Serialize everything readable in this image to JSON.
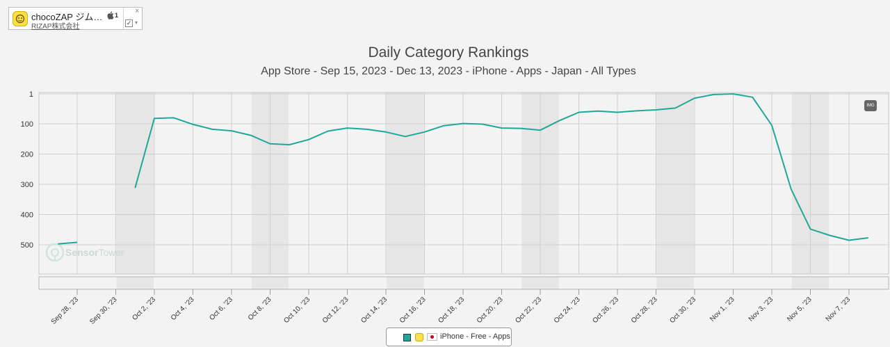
{
  "app_card": {
    "name": "chocoZAP ジム…",
    "developer": "RIZAP株式会社",
    "rank_badge": "1",
    "icon": "app-logo-icon",
    "platform_icon": "apple-icon",
    "close_icon": "close-icon",
    "check_mark": "✓",
    "caret": "▾"
  },
  "chart_title": "Daily Category Rankings",
  "chart_subtitle": "App Store - Sep 15, 2023 - Dec 13, 2023 - iPhone - Apps - Japan - All Types",
  "watermark": {
    "text_a": "Sensor",
    "text_b": "Tower"
  },
  "img_button": "IMG",
  "legend": {
    "label": "iPhone - Free - Apps",
    "color": "#1fa89a"
  },
  "colors": {
    "line": "#1fa89a",
    "weekend_band": "#e6e6e6",
    "plot_bg": "#f3f3f3",
    "grid": "#cfcfcf"
  },
  "chart_data": {
    "type": "line",
    "title": "Daily Category Rankings",
    "subtitle": "App Store - Sep 15, 2023 - Dec 13, 2023 - iPhone - Apps - Japan - All Types",
    "y_reversed": true,
    "ylim": [
      1,
      600
    ],
    "y_ticks": [
      "1",
      "100",
      "200",
      "300",
      "400",
      "500"
    ],
    "x_ticks": [
      "Sep 28, '23",
      "Sep 30, '23",
      "Oct 2, '23",
      "Oct 4, '23",
      "Oct 6, '23",
      "Oct 8, '23",
      "Oct 10, '23",
      "Oct 12, '23",
      "Oct 14, '23",
      "Oct 16, '23",
      "Oct 18, '23",
      "Oct 20, '23",
      "Oct 22, '23",
      "Oct 24, '23",
      "Oct 26, '23",
      "Oct 28, '23",
      "Oct 30, '23",
      "Nov 1, '23",
      "Nov 3, '23",
      "Nov 5, '23",
      "Nov 7, '23"
    ],
    "weekend_bands": [
      [
        "Sep 30, '23",
        "Oct 1, '23"
      ],
      [
        "Oct 7, '23",
        "Oct 8, '23"
      ],
      [
        "Oct 14, '23",
        "Oct 15, '23"
      ],
      [
        "Oct 21, '23",
        "Oct 22, '23"
      ],
      [
        "Oct 28, '23",
        "Oct 29, '23"
      ],
      [
        "Nov 4, '23",
        "Nov 5, '23"
      ]
    ],
    "grid": true,
    "legend_position": "bottom-center",
    "series": [
      {
        "name": "iPhone - Free - Apps",
        "segments": [
          [
            {
              "x": "Sep 27, '23",
              "y": 497
            },
            {
              "x": "Sep 28, '23",
              "y": 492
            }
          ],
          [
            {
              "x": "Oct 1, '23",
              "y": 312
            },
            {
              "x": "Oct 2, '23",
              "y": 82
            },
            {
              "x": "Oct 3, '23",
              "y": 80
            },
            {
              "x": "Oct 4, '23",
              "y": 102
            },
            {
              "x": "Oct 5, '23",
              "y": 118
            },
            {
              "x": "Oct 6, '23",
              "y": 123
            },
            {
              "x": "Oct 7, '23",
              "y": 138
            },
            {
              "x": "Oct 8, '23",
              "y": 166
            },
            {
              "x": "Oct 9, '23",
              "y": 169
            },
            {
              "x": "Oct 10, '23",
              "y": 152
            },
            {
              "x": "Oct 11, '23",
              "y": 124
            },
            {
              "x": "Oct 12, '23",
              "y": 114
            },
            {
              "x": "Oct 13, '23",
              "y": 118
            },
            {
              "x": "Oct 14, '23",
              "y": 127
            },
            {
              "x": "Oct 15, '23",
              "y": 142
            },
            {
              "x": "Oct 16, '23",
              "y": 127
            },
            {
              "x": "Oct 17, '23",
              "y": 106
            },
            {
              "x": "Oct 18, '23",
              "y": 99
            },
            {
              "x": "Oct 19, '23",
              "y": 101
            },
            {
              "x": "Oct 20, '23",
              "y": 114
            },
            {
              "x": "Oct 21, '23",
              "y": 115
            },
            {
              "x": "Oct 22, '23",
              "y": 121
            },
            {
              "x": "Oct 23, '23",
              "y": 89
            },
            {
              "x": "Oct 24, '23",
              "y": 62
            },
            {
              "x": "Oct 25, '23",
              "y": 58
            },
            {
              "x": "Oct 26, '23",
              "y": 62
            },
            {
              "x": "Oct 27, '23",
              "y": 57
            },
            {
              "x": "Oct 28, '23",
              "y": 54
            },
            {
              "x": "Oct 29, '23",
              "y": 48
            },
            {
              "x": "Oct 30, '23",
              "y": 15
            },
            {
              "x": "Oct 31, '23",
              "y": 3
            },
            {
              "x": "Nov 1, '23",
              "y": 1
            },
            {
              "x": "Nov 2, '23",
              "y": 12
            },
            {
              "x": "Nov 3, '23",
              "y": 105
            },
            {
              "x": "Nov 4, '23",
              "y": 316
            },
            {
              "x": "Nov 5, '23",
              "y": 448
            },
            {
              "x": "Nov 6, '23",
              "y": 469
            },
            {
              "x": "Nov 7, '23",
              "y": 485
            },
            {
              "x": "Nov 8, '23",
              "y": 477
            }
          ]
        ]
      }
    ]
  }
}
